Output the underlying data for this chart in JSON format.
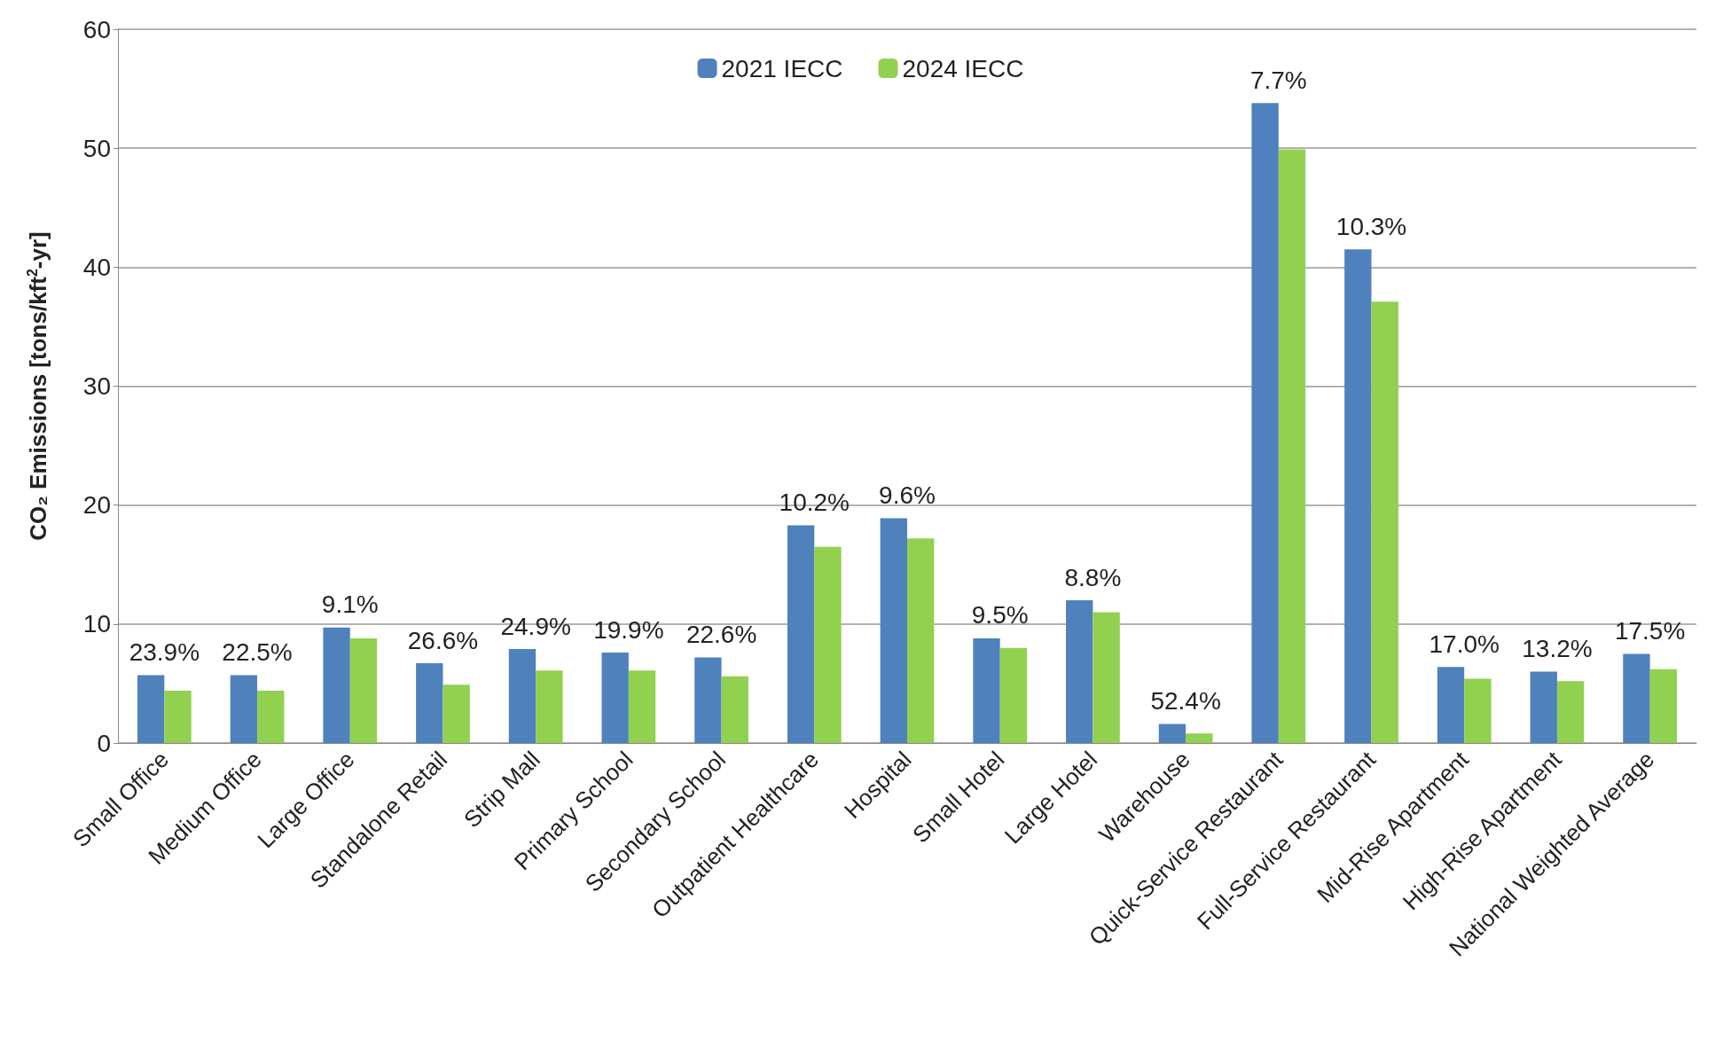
{
  "chart_data": {
    "type": "bar",
    "ylabel": "CO₂ Emissions [tons/kft$^{2}$-yr]",
    "categories": [
      "Small Office",
      "Medium Office",
      "Large Office",
      "Standalone Retail",
      "Strip Mall",
      "Primary School",
      "Secondary School",
      "Outpatient Healthcare",
      "Hospital",
      "Small Hotel",
      "Large Hotel",
      "Warehouse",
      "Quick-Service Restaurant",
      "Full-Service Restaurant",
      "Mid-Rise Apartment",
      "High-Rise Apartment",
      "National Weighted Average"
    ],
    "series": [
      {
        "name": "2021 IECC",
        "color": "#4f81bd",
        "values": [
          5.7,
          5.7,
          9.7,
          6.7,
          7.9,
          7.6,
          7.2,
          18.3,
          18.9,
          8.8,
          12.0,
          1.6,
          53.8,
          41.5,
          6.4,
          6.0,
          7.5
        ]
      },
      {
        "name": "2024 IECC",
        "color": "#92d050",
        "values": [
          4.4,
          4.4,
          8.8,
          4.9,
          6.1,
          6.1,
          5.6,
          16.5,
          17.2,
          8.0,
          11.0,
          0.8,
          49.9,
          37.1,
          5.4,
          5.2,
          6.2
        ]
      }
    ],
    "annotations": [
      {
        "text": "23.9%",
        "x": "Small Office",
        "y": 5.7
      },
      {
        "text": "22.5%",
        "x": "Medium Office",
        "y": 5.7
      },
      {
        "text": "9.1%",
        "x": "Large Office",
        "y": 9.7
      },
      {
        "text": "26.6%",
        "x": "Standalone Retail",
        "y": 6.7
      },
      {
        "text": "24.9%",
        "x": "Strip Mall",
        "y": 7.9
      },
      {
        "text": "19.9%",
        "x": "Primary School",
        "y": 7.6
      },
      {
        "text": "22.6%",
        "x": "Secondary School",
        "y": 7.2
      },
      {
        "text": "10.2%",
        "x": "Outpatient Healthcare",
        "y": 18.3
      },
      {
        "text": "9.6%",
        "x": "Hospital",
        "y": 18.9
      },
      {
        "text": "9.5%",
        "x": "Small Hotel",
        "y": 8.8
      },
      {
        "text": "8.8%",
        "x": "Large Hotel",
        "y": 12.0
      },
      {
        "text": "52.4%",
        "x": "Warehouse",
        "y": 1.6
      },
      {
        "text": "7.7%",
        "x": "Quick-Service Restaurant",
        "y": 53.8
      },
      {
        "text": "10.3%",
        "x": "Full-Service Restaurant",
        "y": 41.5
      },
      {
        "text": "17.0%",
        "x": "Mid-Rise Apartment",
        "y": 6.4
      },
      {
        "text": "13.2%",
        "x": "High-Rise Apartment",
        "y": 6.0
      },
      {
        "text": "17.5%",
        "x": "National Weighted Average",
        "y": 7.5
      }
    ],
    "ylim": [
      0,
      60
    ],
    "yticks": [
      0,
      10,
      20,
      30,
      40,
      50,
      60
    ],
    "grid": "y",
    "legend": "top"
  }
}
